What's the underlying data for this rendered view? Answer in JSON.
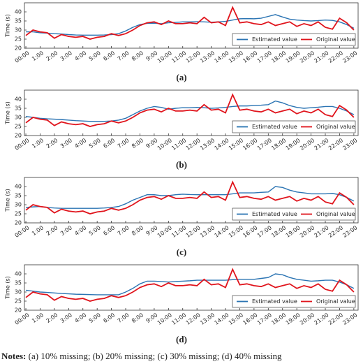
{
  "chart_data": [
    {
      "type": "line",
      "caption": "(a)",
      "y_label": "Time (s)",
      "legend": "lower right",
      "grid": false,
      "xlim": [
        -0.1,
        23.3
      ],
      "ylim": [
        20,
        45
      ],
      "yticks": [
        20,
        25,
        30,
        35,
        40
      ],
      "xticks": [
        {
          "value": 0,
          "label": "00:00"
        },
        {
          "value": 1,
          "label": "1:00"
        },
        {
          "value": 2,
          "label": "2:00"
        },
        {
          "value": 3,
          "label": "3:00"
        },
        {
          "value": 4,
          "label": "4:00"
        },
        {
          "value": 5,
          "label": "5:00"
        },
        {
          "value": 6,
          "label": "6:00"
        },
        {
          "value": 7,
          "label": "7:00"
        },
        {
          "value": 8,
          "label": "8:00"
        },
        {
          "value": 9,
          "label": "9:00"
        },
        {
          "value": 10,
          "label": "10:00"
        },
        {
          "value": 11,
          "label": "11:00"
        },
        {
          "value": 12,
          "label": "12:00"
        },
        {
          "value": 13,
          "label": "13:00"
        },
        {
          "value": 14,
          "label": "14:00"
        },
        {
          "value": 15,
          "label": "15:00"
        },
        {
          "value": 16,
          "label": "16:00"
        },
        {
          "value": 17,
          "label": "17:00"
        },
        {
          "value": 18,
          "label": "18:00"
        },
        {
          "value": 19,
          "label": "19:00"
        },
        {
          "value": 20,
          "label": "20:00"
        },
        {
          "value": 21,
          "label": "21:00"
        },
        {
          "value": 22,
          "label": "22:00"
        },
        {
          "value": 23,
          "label": "23:00"
        }
      ],
      "x": [
        0,
        0.5,
        1,
        1.5,
        2,
        2.5,
        3,
        3.5,
        4,
        4.5,
        5,
        5.5,
        6,
        6.5,
        7,
        7.5,
        8,
        8.5,
        9,
        9.5,
        10,
        10.5,
        11,
        11.5,
        12,
        12.5,
        13,
        13.5,
        14,
        14.5,
        15,
        15.5,
        16,
        16.5,
        17,
        17.5,
        18,
        18.5,
        19,
        19.5,
        20,
        20.5,
        21,
        21.5,
        22,
        22.5,
        23
      ],
      "series": [
        {
          "name": "Estimated value",
          "color": "#2b74b3",
          "values": [
            29,
            29,
            28.5,
            28.3,
            28,
            27.8,
            27.5,
            27.3,
            27.2,
            27.2,
            27.2,
            27.3,
            27.5,
            28,
            29.5,
            31.5,
            33,
            33.7,
            33.8,
            33.5,
            34,
            34.2,
            34.5,
            34.5,
            34.6,
            34.5,
            34.3,
            34.5,
            34.8,
            35.5,
            36.2,
            36.3,
            36.2,
            36.5,
            37.5,
            38.5,
            37.2,
            36,
            35.5,
            35.2,
            35,
            35.2,
            35.5,
            35.3,
            34.5,
            33,
            31
          ]
        },
        {
          "name": "Original value",
          "color": "#e0141c",
          "values": [
            27,
            30,
            29,
            28.5,
            25.5,
            27.5,
            26.5,
            26,
            26.5,
            25,
            26,
            26.5,
            28,
            27,
            28,
            30,
            32.5,
            34,
            34.5,
            33,
            35,
            33.5,
            33.5,
            34,
            33.5,
            37,
            34,
            34.5,
            32.5,
            42.5,
            34,
            34.5,
            33.5,
            33,
            34.5,
            32.5,
            33.5,
            34.5,
            32,
            33.5,
            32.5,
            34.5,
            31.5,
            30.5,
            36.5,
            34,
            30
          ]
        }
      ]
    },
    {
      "type": "line",
      "caption": "(b)",
      "y_label": "Time (s)",
      "legend": "lower right",
      "grid": false,
      "xlim": [
        -0.1,
        23.3
      ],
      "ylim": [
        20,
        45
      ],
      "yticks": [
        20,
        25,
        30,
        35,
        40
      ],
      "xticks": [
        {
          "value": 0,
          "label": "00:00"
        },
        {
          "value": 1,
          "label": "1:00"
        },
        {
          "value": 2,
          "label": "2:00"
        },
        {
          "value": 3,
          "label": "3:00"
        },
        {
          "value": 4,
          "label": "4:00"
        },
        {
          "value": 5,
          "label": "5:00"
        },
        {
          "value": 6,
          "label": "6:00"
        },
        {
          "value": 7,
          "label": "7:00"
        },
        {
          "value": 8,
          "label": "8:00"
        },
        {
          "value": 9,
          "label": "9:00"
        },
        {
          "value": 10,
          "label": "10:00"
        },
        {
          "value": 11,
          "label": "11:00"
        },
        {
          "value": 12,
          "label": "12:00"
        },
        {
          "value": 13,
          "label": "13:00"
        },
        {
          "value": 14,
          "label": "14:00"
        },
        {
          "value": 15,
          "label": "15:00"
        },
        {
          "value": 16,
          "label": "16:00"
        },
        {
          "value": 17,
          "label": "17:00"
        },
        {
          "value": 18,
          "label": "18:00"
        },
        {
          "value": 19,
          "label": "19:00"
        },
        {
          "value": 20,
          "label": "20:00"
        },
        {
          "value": 21,
          "label": "21:00"
        },
        {
          "value": 22,
          "label": "22:00"
        },
        {
          "value": 23,
          "label": "23:00"
        }
      ],
      "x": [
        0,
        0.5,
        1,
        1.5,
        2,
        2.5,
        3,
        3.5,
        4,
        4.5,
        5,
        5.5,
        6,
        6.5,
        7,
        7.5,
        8,
        8.5,
        9,
        9.5,
        10,
        10.5,
        11,
        11.5,
        12,
        12.5,
        13,
        13.5,
        14,
        14.5,
        15,
        15.5,
        16,
        16.5,
        17,
        17.5,
        18,
        18.5,
        19,
        19.5,
        20,
        20.5,
        21,
        21.5,
        22,
        22.5,
        23
      ],
      "series": [
        {
          "name": "Estimated value",
          "color": "#2b74b3",
          "values": [
            30.5,
            30,
            29.5,
            29.2,
            29,
            28.8,
            28.5,
            28.2,
            28,
            27.8,
            27.8,
            27.8,
            28,
            28.5,
            29.5,
            31.5,
            33.5,
            35,
            36,
            35.5,
            34.5,
            35,
            35.3,
            35.3,
            35.5,
            35.3,
            35,
            35.2,
            35.5,
            36,
            36.3,
            36.3,
            36.5,
            36.7,
            37,
            39,
            38,
            36.5,
            35.5,
            35,
            35.3,
            35.6,
            36,
            36,
            35,
            33.5,
            31.5
          ]
        },
        {
          "name": "Original value",
          "color": "#e0141c",
          "values": [
            27,
            30,
            29,
            28.5,
            25.5,
            27.5,
            26.5,
            26,
            26.5,
            25,
            26,
            26.5,
            28,
            27,
            28,
            30,
            32.5,
            34,
            34.5,
            33,
            35,
            33.5,
            33.5,
            34,
            33.5,
            37,
            34,
            34.5,
            32.5,
            42.5,
            34,
            34.5,
            33.5,
            33,
            34.5,
            32.5,
            33.5,
            34.5,
            32,
            33.5,
            32.5,
            34.5,
            31.5,
            30.5,
            36.5,
            34,
            30
          ]
        }
      ]
    },
    {
      "type": "line",
      "caption": "(c)",
      "y_label": "Time (s)",
      "legend": "lower right",
      "grid": false,
      "xlim": [
        -0.1,
        23.3
      ],
      "ylim": [
        20,
        45
      ],
      "yticks": [
        20,
        25,
        30,
        35,
        40
      ],
      "xticks": [
        {
          "value": 0,
          "label": "00:00"
        },
        {
          "value": 1,
          "label": "1:00"
        },
        {
          "value": 2,
          "label": "2:00"
        },
        {
          "value": 3,
          "label": "3:00"
        },
        {
          "value": 4,
          "label": "4:00"
        },
        {
          "value": 5,
          "label": "5:00"
        },
        {
          "value": 6,
          "label": "6:00"
        },
        {
          "value": 7,
          "label": "7:00"
        },
        {
          "value": 8,
          "label": "8:00"
        },
        {
          "value": 9,
          "label": "9:00"
        },
        {
          "value": 10,
          "label": "10:00"
        },
        {
          "value": 11,
          "label": "11:00"
        },
        {
          "value": 12,
          "label": "12:00"
        },
        {
          "value": 13,
          "label": "13:00"
        },
        {
          "value": 14,
          "label": "14:00"
        },
        {
          "value": 15,
          "label": "15:00"
        },
        {
          "value": 16,
          "label": "16:00"
        },
        {
          "value": 17,
          "label": "17:00"
        },
        {
          "value": 18,
          "label": "18:00"
        },
        {
          "value": 19,
          "label": "19:00"
        },
        {
          "value": 20,
          "label": "20:00"
        },
        {
          "value": 21,
          "label": "21:00"
        },
        {
          "value": 22,
          "label": "22:00"
        },
        {
          "value": 23,
          "label": "23:00"
        }
      ],
      "x": [
        0,
        0.5,
        1,
        1.5,
        2,
        2.5,
        3,
        3.5,
        4,
        4.5,
        5,
        5.5,
        6,
        6.5,
        7,
        7.5,
        8,
        8.5,
        9,
        9.5,
        10,
        10.5,
        11,
        11.5,
        12,
        12.5,
        13,
        13.5,
        14,
        14.5,
        15,
        15.5,
        16,
        16.5,
        17,
        17.5,
        18,
        18.5,
        19,
        19.5,
        20,
        20.5,
        21,
        21.5,
        22,
        22.5,
        23
      ],
      "series": [
        {
          "name": "Estimated value",
          "color": "#2b74b3",
          "values": [
            28.5,
            28.8,
            29,
            28.5,
            28.2,
            28,
            28,
            28,
            28,
            28,
            28,
            28.2,
            28.5,
            29,
            30.5,
            32.5,
            34,
            35.5,
            35.5,
            35,
            35,
            35.5,
            35.8,
            35.6,
            35.5,
            35.5,
            35.5,
            35.5,
            35.5,
            36,
            36.5,
            36.5,
            36.5,
            36.8,
            37,
            40,
            39.5,
            38,
            37,
            36.5,
            36,
            36,
            36,
            36.2,
            35.5,
            34,
            32
          ]
        },
        {
          "name": "Original value",
          "color": "#e0141c",
          "values": [
            27,
            30,
            29,
            28.5,
            25.5,
            27.5,
            26.5,
            26,
            26.5,
            25,
            26,
            26.5,
            28,
            27,
            28,
            30,
            32.5,
            34,
            34.5,
            33,
            35,
            33.5,
            33.5,
            34,
            33.5,
            37,
            34,
            34.5,
            32.5,
            42.5,
            34,
            34.5,
            33.5,
            33,
            34.5,
            32.5,
            33.5,
            34.5,
            32,
            33.5,
            32.5,
            34.5,
            31.5,
            30.5,
            36.5,
            34,
            30
          ]
        }
      ]
    },
    {
      "type": "line",
      "caption": "(d)",
      "y_label": "Time (s)",
      "legend": "lower right",
      "grid": false,
      "xlim": [
        -0.1,
        23.3
      ],
      "ylim": [
        20,
        45
      ],
      "yticks": [
        20,
        25,
        30,
        35,
        40
      ],
      "xticks": [
        {
          "value": 0,
          "label": "00:00"
        },
        {
          "value": 1,
          "label": "1:00"
        },
        {
          "value": 2,
          "label": "2:00"
        },
        {
          "value": 3,
          "label": "3:00"
        },
        {
          "value": 4,
          "label": "4:00"
        },
        {
          "value": 5,
          "label": "5:00"
        },
        {
          "value": 6,
          "label": "6:00"
        },
        {
          "value": 7,
          "label": "7:00"
        },
        {
          "value": 8,
          "label": "8:00"
        },
        {
          "value": 9,
          "label": "9:00"
        },
        {
          "value": 10,
          "label": "10:00"
        },
        {
          "value": 11,
          "label": "11:00"
        },
        {
          "value": 12,
          "label": "12:00"
        },
        {
          "value": 13,
          "label": "13:00"
        },
        {
          "value": 14,
          "label": "14:00"
        },
        {
          "value": 15,
          "label": "15:00"
        },
        {
          "value": 16,
          "label": "16:00"
        },
        {
          "value": 17,
          "label": "17:00"
        },
        {
          "value": 18,
          "label": "18:00"
        },
        {
          "value": 19,
          "label": "19:00"
        },
        {
          "value": 20,
          "label": "20:00"
        },
        {
          "value": 21,
          "label": "21:00"
        },
        {
          "value": 22,
          "label": "22:00"
        },
        {
          "value": 23,
          "label": "23:00"
        }
      ],
      "x": [
        0,
        0.5,
        1,
        1.5,
        2,
        2.5,
        3,
        3.5,
        4,
        4.5,
        5,
        5.5,
        6,
        6.5,
        7,
        7.5,
        8,
        8.5,
        9,
        9.5,
        10,
        10.5,
        11,
        11.5,
        12,
        12.5,
        13,
        13.5,
        14,
        14.5,
        15,
        15.5,
        16,
        16.5,
        17,
        17.5,
        18,
        18.5,
        19,
        19.5,
        20,
        20.5,
        21,
        21.5,
        22,
        22.5,
        23
      ],
      "series": [
        {
          "name": "Estimated value",
          "color": "#2b74b3",
          "values": [
            31,
            30.5,
            30,
            29.8,
            29.5,
            29.2,
            29,
            28.8,
            28.7,
            28.6,
            28.5,
            28.5,
            28.5,
            28.5,
            30,
            32,
            34.5,
            36,
            36,
            35.8,
            35.5,
            35.8,
            36,
            36.2,
            36.5,
            36.5,
            36.5,
            36.5,
            36.5,
            36.8,
            37,
            37,
            37,
            37.5,
            38,
            40,
            39.5,
            38,
            37,
            36.5,
            36,
            36.2,
            36.5,
            36.5,
            35.5,
            34,
            32
          ]
        },
        {
          "name": "Original value",
          "color": "#e0141c",
          "values": [
            27,
            30,
            29,
            28.5,
            25.5,
            27.5,
            26.5,
            26,
            26.5,
            25,
            26,
            26.5,
            28,
            27,
            28,
            30,
            32.5,
            34,
            34.5,
            33,
            35,
            33.5,
            33.5,
            34,
            33.5,
            37,
            34,
            34.5,
            32.5,
            42.5,
            34,
            34.5,
            33.5,
            33,
            34.5,
            32.5,
            33.5,
            34.5,
            32,
            33.5,
            32.5,
            34.5,
            31.5,
            30.5,
            36.5,
            34,
            30
          ]
        }
      ]
    }
  ],
  "notes": {
    "label": "Notes:",
    "text": "(a) 10% missing; (b) 20% missing; (c) 30% missing; (d) 40% missing"
  }
}
